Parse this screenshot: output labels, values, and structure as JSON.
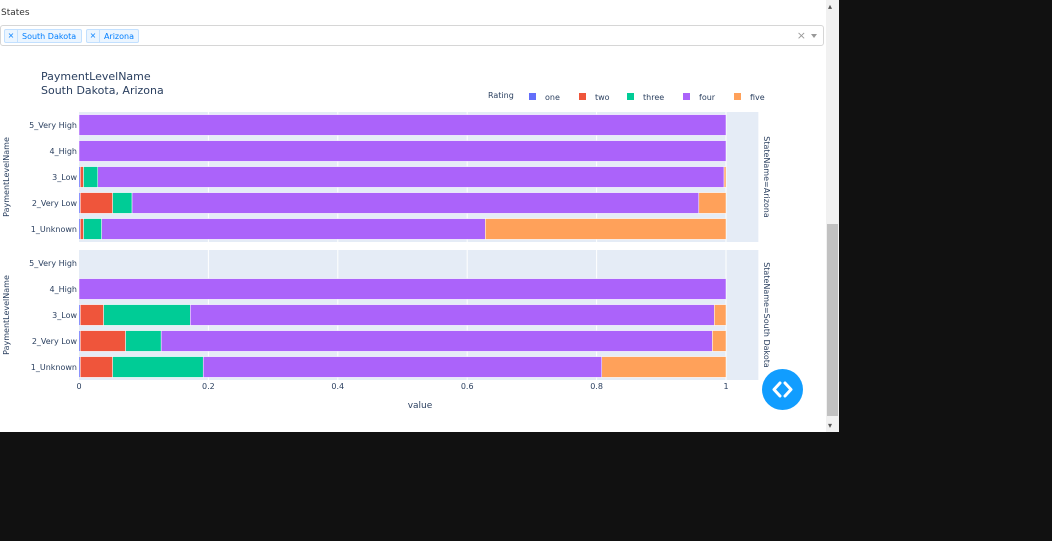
{
  "filter": {
    "label": "States",
    "selected": [
      "South Dakota",
      "Arizona"
    ],
    "chip_remove_icon": "×",
    "clear_icon": "×"
  },
  "scrollbar": {
    "up": "▴",
    "down": "▾"
  },
  "colors": {
    "one": "#636efa",
    "two": "#EF553B",
    "three": "#00cc96",
    "four": "#ab63fa",
    "five": "#FFA15A"
  },
  "chart_data": {
    "type": "bar",
    "orientation": "horizontal",
    "barmode": "stack",
    "title": [
      "PaymentLevelName",
      "South Dakota, Arizona"
    ],
    "legend": {
      "title": "Rating",
      "position": "top-right",
      "entries": [
        "one",
        "two",
        "three",
        "four",
        "five"
      ]
    },
    "xlabel": "value",
    "ylabel": "PaymentLevelName",
    "xlim": [
      0,
      1.05
    ],
    "xticks": [
      0,
      0.2,
      0.4,
      0.6,
      0.8,
      1
    ],
    "xtick_labels": [
      "0",
      "0.2",
      "0.4",
      "0.6",
      "0.8",
      "1"
    ],
    "categories": [
      "5_Very High",
      "4_High",
      "3_Low",
      "2_Very Low",
      "1_Unknown"
    ],
    "facets": [
      {
        "label": "StateName=Arizona",
        "series": [
          {
            "name": "one",
            "values": [
              0,
              0,
              0.002,
              0.002,
              0.002
            ]
          },
          {
            "name": "two",
            "values": [
              0,
              0,
              0.005,
              0.05,
              0.005
            ]
          },
          {
            "name": "three",
            "values": [
              0,
              0,
              0.022,
              0.03,
              0.028
            ]
          },
          {
            "name": "four",
            "values": [
              1.0,
              1.0,
              0.968,
              0.876,
              0.593
            ]
          },
          {
            "name": "five",
            "values": [
              0,
              0,
              0.003,
              0.042,
              0.372
            ]
          }
        ]
      },
      {
        "label": "StateName=South Dakota",
        "series": [
          {
            "name": "one",
            "values": [
              0,
              0,
              0.002,
              0.002,
              0.002
            ]
          },
          {
            "name": "two",
            "values": [
              0,
              0,
              0.036,
              0.07,
              0.05
            ]
          },
          {
            "name": "three",
            "values": [
              0,
              0,
              0.134,
              0.055,
              0.14
            ]
          },
          {
            "name": "four",
            "values": [
              0,
              1.0,
              0.81,
              0.852,
              0.616
            ]
          },
          {
            "name": "five",
            "values": [
              0,
              0,
              0.018,
              0.021,
              0.192
            ]
          }
        ]
      }
    ]
  }
}
